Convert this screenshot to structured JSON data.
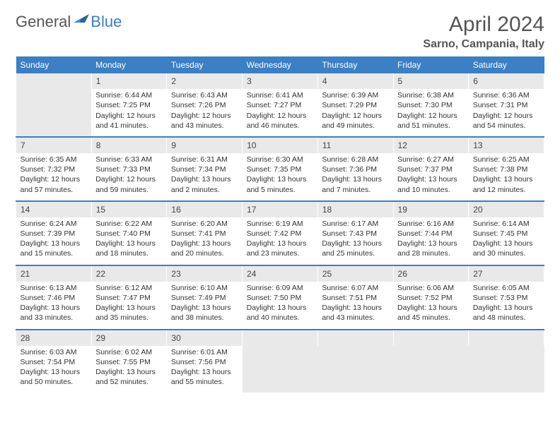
{
  "brand": {
    "part1": "General",
    "part2": "Blue"
  },
  "title": "April 2024",
  "location": "Sarno, Campania, Italy",
  "colors": {
    "accent": "#3b7fc4",
    "header_text": "#555",
    "cell_bg": "#e9e9e9"
  },
  "day_headers": [
    "Sunday",
    "Monday",
    "Tuesday",
    "Wednesday",
    "Thursday",
    "Friday",
    "Saturday"
  ],
  "weeks": [
    {
      "nums": [
        "",
        "1",
        "2",
        "3",
        "4",
        "5",
        "6"
      ],
      "cells": [
        null,
        {
          "sunrise": "Sunrise: 6:44 AM",
          "sunset": "Sunset: 7:25 PM",
          "day1": "Daylight: 12 hours",
          "day2": "and 41 minutes."
        },
        {
          "sunrise": "Sunrise: 6:43 AM",
          "sunset": "Sunset: 7:26 PM",
          "day1": "Daylight: 12 hours",
          "day2": "and 43 minutes."
        },
        {
          "sunrise": "Sunrise: 6:41 AM",
          "sunset": "Sunset: 7:27 PM",
          "day1": "Daylight: 12 hours",
          "day2": "and 46 minutes."
        },
        {
          "sunrise": "Sunrise: 6:39 AM",
          "sunset": "Sunset: 7:29 PM",
          "day1": "Daylight: 12 hours",
          "day2": "and 49 minutes."
        },
        {
          "sunrise": "Sunrise: 6:38 AM",
          "sunset": "Sunset: 7:30 PM",
          "day1": "Daylight: 12 hours",
          "day2": "and 51 minutes."
        },
        {
          "sunrise": "Sunrise: 6:36 AM",
          "sunset": "Sunset: 7:31 PM",
          "day1": "Daylight: 12 hours",
          "day2": "and 54 minutes."
        }
      ]
    },
    {
      "nums": [
        "7",
        "8",
        "9",
        "10",
        "11",
        "12",
        "13"
      ],
      "cells": [
        {
          "sunrise": "Sunrise: 6:35 AM",
          "sunset": "Sunset: 7:32 PM",
          "day1": "Daylight: 12 hours",
          "day2": "and 57 minutes."
        },
        {
          "sunrise": "Sunrise: 6:33 AM",
          "sunset": "Sunset: 7:33 PM",
          "day1": "Daylight: 12 hours",
          "day2": "and 59 minutes."
        },
        {
          "sunrise": "Sunrise: 6:31 AM",
          "sunset": "Sunset: 7:34 PM",
          "day1": "Daylight: 13 hours",
          "day2": "and 2 minutes."
        },
        {
          "sunrise": "Sunrise: 6:30 AM",
          "sunset": "Sunset: 7:35 PM",
          "day1": "Daylight: 13 hours",
          "day2": "and 5 minutes."
        },
        {
          "sunrise": "Sunrise: 6:28 AM",
          "sunset": "Sunset: 7:36 PM",
          "day1": "Daylight: 13 hours",
          "day2": "and 7 minutes."
        },
        {
          "sunrise": "Sunrise: 6:27 AM",
          "sunset": "Sunset: 7:37 PM",
          "day1": "Daylight: 13 hours",
          "day2": "and 10 minutes."
        },
        {
          "sunrise": "Sunrise: 6:25 AM",
          "sunset": "Sunset: 7:38 PM",
          "day1": "Daylight: 13 hours",
          "day2": "and 12 minutes."
        }
      ]
    },
    {
      "nums": [
        "14",
        "15",
        "16",
        "17",
        "18",
        "19",
        "20"
      ],
      "cells": [
        {
          "sunrise": "Sunrise: 6:24 AM",
          "sunset": "Sunset: 7:39 PM",
          "day1": "Daylight: 13 hours",
          "day2": "and 15 minutes."
        },
        {
          "sunrise": "Sunrise: 6:22 AM",
          "sunset": "Sunset: 7:40 PM",
          "day1": "Daylight: 13 hours",
          "day2": "and 18 minutes."
        },
        {
          "sunrise": "Sunrise: 6:20 AM",
          "sunset": "Sunset: 7:41 PM",
          "day1": "Daylight: 13 hours",
          "day2": "and 20 minutes."
        },
        {
          "sunrise": "Sunrise: 6:19 AM",
          "sunset": "Sunset: 7:42 PM",
          "day1": "Daylight: 13 hours",
          "day2": "and 23 minutes."
        },
        {
          "sunrise": "Sunrise: 6:17 AM",
          "sunset": "Sunset: 7:43 PM",
          "day1": "Daylight: 13 hours",
          "day2": "and 25 minutes."
        },
        {
          "sunrise": "Sunrise: 6:16 AM",
          "sunset": "Sunset: 7:44 PM",
          "day1": "Daylight: 13 hours",
          "day2": "and 28 minutes."
        },
        {
          "sunrise": "Sunrise: 6:14 AM",
          "sunset": "Sunset: 7:45 PM",
          "day1": "Daylight: 13 hours",
          "day2": "and 30 minutes."
        }
      ]
    },
    {
      "nums": [
        "21",
        "22",
        "23",
        "24",
        "25",
        "26",
        "27"
      ],
      "cells": [
        {
          "sunrise": "Sunrise: 6:13 AM",
          "sunset": "Sunset: 7:46 PM",
          "day1": "Daylight: 13 hours",
          "day2": "and 33 minutes."
        },
        {
          "sunrise": "Sunrise: 6:12 AM",
          "sunset": "Sunset: 7:47 PM",
          "day1": "Daylight: 13 hours",
          "day2": "and 35 minutes."
        },
        {
          "sunrise": "Sunrise: 6:10 AM",
          "sunset": "Sunset: 7:49 PM",
          "day1": "Daylight: 13 hours",
          "day2": "and 38 minutes."
        },
        {
          "sunrise": "Sunrise: 6:09 AM",
          "sunset": "Sunset: 7:50 PM",
          "day1": "Daylight: 13 hours",
          "day2": "and 40 minutes."
        },
        {
          "sunrise": "Sunrise: 6:07 AM",
          "sunset": "Sunset: 7:51 PM",
          "day1": "Daylight: 13 hours",
          "day2": "and 43 minutes."
        },
        {
          "sunrise": "Sunrise: 6:06 AM",
          "sunset": "Sunset: 7:52 PM",
          "day1": "Daylight: 13 hours",
          "day2": "and 45 minutes."
        },
        {
          "sunrise": "Sunrise: 6:05 AM",
          "sunset": "Sunset: 7:53 PM",
          "day1": "Daylight: 13 hours",
          "day2": "and 48 minutes."
        }
      ]
    },
    {
      "nums": [
        "28",
        "29",
        "30",
        "",
        "",
        "",
        ""
      ],
      "cells": [
        {
          "sunrise": "Sunrise: 6:03 AM",
          "sunset": "Sunset: 7:54 PM",
          "day1": "Daylight: 13 hours",
          "day2": "and 50 minutes."
        },
        {
          "sunrise": "Sunrise: 6:02 AM",
          "sunset": "Sunset: 7:55 PM",
          "day1": "Daylight: 13 hours",
          "day2": "and 52 minutes."
        },
        {
          "sunrise": "Sunrise: 6:01 AM",
          "sunset": "Sunset: 7:56 PM",
          "day1": "Daylight: 13 hours",
          "day2": "and 55 minutes."
        },
        null,
        null,
        null,
        null
      ]
    }
  ]
}
